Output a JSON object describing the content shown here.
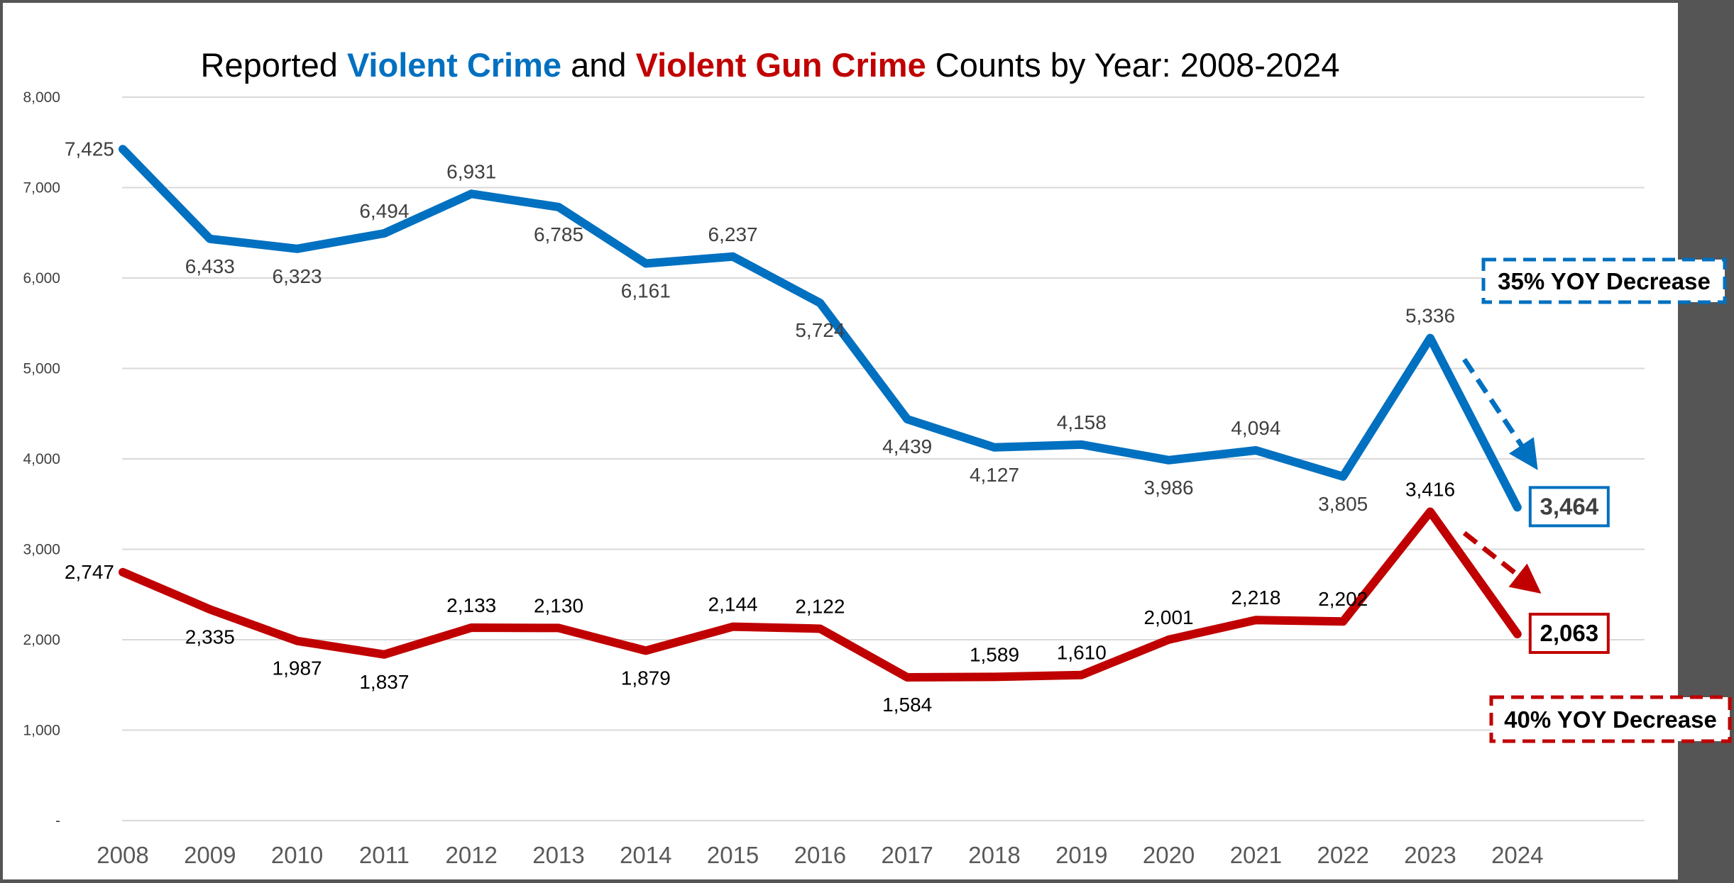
{
  "colors": {
    "frame": "#555555",
    "background": "#ffffff",
    "gridline": "#d9d9d9",
    "violent_crime": "#0070c0",
    "violent_gun_crime": "#c00000",
    "text": "#000000",
    "axis_text": "#404040"
  },
  "chart_data": {
    "type": "line",
    "title": "Reported Violent Crime and Violent Gun Crime Counts by Year: 2008-2024",
    "title_parts": [
      {
        "text": "Reported ",
        "color": "#000000",
        "bold": false
      },
      {
        "text": "Violent Crime",
        "color": "#0070c0",
        "bold": true
      },
      {
        "text": " and ",
        "color": "#000000",
        "bold": false
      },
      {
        "text": "Violent Gun Crime",
        "color": "#c00000",
        "bold": true
      },
      {
        "text": " Counts by Year: 2008-2024",
        "color": "#000000",
        "bold": false
      }
    ],
    "x": [
      "2008",
      "2009",
      "2010",
      "2011",
      "2012",
      "2013",
      "2014",
      "2015",
      "2016",
      "2017",
      "2018",
      "2019",
      "2020",
      "2021",
      "2022",
      "2023",
      "2024"
    ],
    "ylim": [
      0,
      8000
    ],
    "yticks": [
      {
        "value": 0,
        "label": "-"
      },
      {
        "value": 1000,
        "label": "1,000"
      },
      {
        "value": 2000,
        "label": "2,000"
      },
      {
        "value": 3000,
        "label": "3,000"
      },
      {
        "value": 4000,
        "label": "4,000"
      },
      {
        "value": 5000,
        "label": "5,000"
      },
      {
        "value": 6000,
        "label": "6,000"
      },
      {
        "value": 7000,
        "label": "7,000"
      },
      {
        "value": 8000,
        "label": "8,000"
      }
    ],
    "grid": true,
    "legend": "none",
    "series": [
      {
        "key": "violent_crime",
        "color": "#0070c0",
        "values": [
          7425,
          6433,
          6323,
          6494,
          6931,
          6785,
          6161,
          6237,
          5724,
          4439,
          4127,
          4158,
          3986,
          4094,
          3805,
          5336,
          3464
        ],
        "labels": [
          "7,425",
          "6,433",
          "6,323",
          "6,494",
          "6,931",
          "6,785",
          "6,161",
          "6,237",
          "5,724",
          "4,439",
          "4,127",
          "4,158",
          "3,986",
          "4,094",
          "3,805",
          "5,336",
          "3,464"
        ],
        "label_pos": [
          "left",
          "below",
          "below",
          "above",
          "above",
          "below",
          "below",
          "above",
          "below",
          "below",
          "below",
          "above",
          "below",
          "above",
          "below",
          "above",
          "right-box"
        ],
        "trend_note": "35% YOY Decrease"
      },
      {
        "key": "violent_gun_crime",
        "color": "#c00000",
        "values": [
          2747,
          2335,
          1987,
          1837,
          2133,
          2130,
          1879,
          2144,
          2122,
          1584,
          1589,
          1610,
          2001,
          2218,
          2202,
          3416,
          2063
        ],
        "labels": [
          "2,747",
          "2,335",
          "1,987",
          "1,837",
          "2,133",
          "2,130",
          "1,879",
          "2,144",
          "2,122",
          "1,584",
          "1,589",
          "1,610",
          "2,001",
          "2,218",
          "2,202",
          "3,416",
          "2,063"
        ],
        "label_pos": [
          "left",
          "below",
          "below",
          "below",
          "above",
          "above",
          "below",
          "above",
          "above",
          "below",
          "above",
          "above",
          "above",
          "above",
          "above",
          "above",
          "right-box"
        ],
        "trend_note": "40% YOY Decrease"
      }
    ]
  }
}
